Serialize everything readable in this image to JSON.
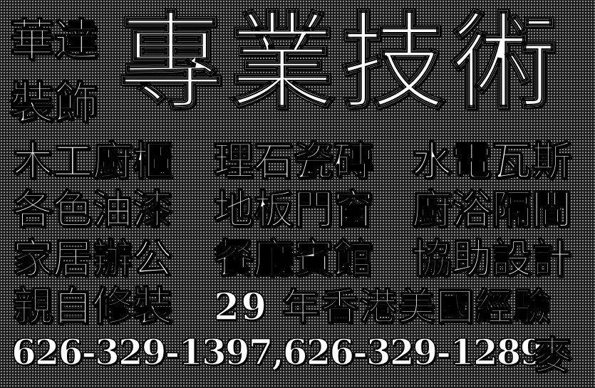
{
  "brand": {
    "line1": "華達",
    "line2": "裝飾"
  },
  "headline": "專業技術",
  "services": [
    [
      "木工廚櫃",
      "理石瓷磚",
      "水電瓦斯"
    ],
    [
      "各色油漆",
      "地板門窗",
      "廚浴隔間"
    ],
    [
      "家居辦公",
      "餐廳賓館",
      "協助設計"
    ]
  ],
  "personal": "親自修裝",
  "tagline": "29 年香港美國經驗",
  "contact": {
    "phones": "626-329-1397,626-329-1289",
    "surname": "麥"
  },
  "colors": {
    "background": "#1a1a1a",
    "halftone_dot": "#9a9a9a",
    "text": "#ffffff"
  }
}
